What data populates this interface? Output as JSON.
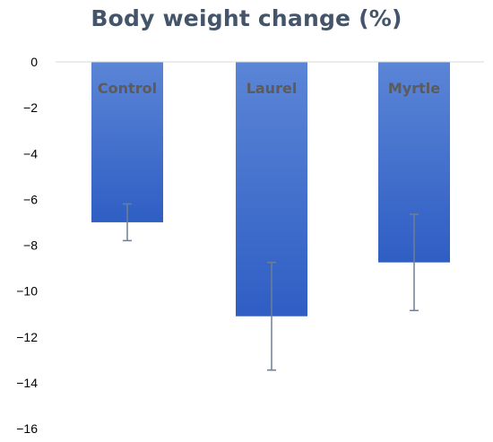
{
  "chart_data": {
    "type": "bar",
    "title": "Body weight change (%)",
    "xlabel": "",
    "ylabel": "",
    "categories": [
      "Control",
      "Laurel",
      "Myrtle"
    ],
    "values": [
      -7.0,
      -11.1,
      -8.75
    ],
    "error_bars": [
      0.8,
      2.35,
      2.1
    ],
    "ylim": [
      -16,
      0
    ],
    "yticks": [
      0,
      -2,
      -4,
      -6,
      -8,
      -10,
      -12,
      -14,
      -16
    ],
    "ytick_labels": [
      "0",
      "−2",
      "−4",
      "−6",
      "−8",
      "−10",
      "−12",
      "−14",
      "−16"
    ],
    "grid": false,
    "legend": "none",
    "colors": {
      "bar_top": "#5b85d6",
      "bar_bottom": "#2f5ec4",
      "error_bar": "#6f7f92",
      "axis": "#d9d9d9",
      "title": "#44546a",
      "category_label": "#5b5b5b"
    }
  }
}
